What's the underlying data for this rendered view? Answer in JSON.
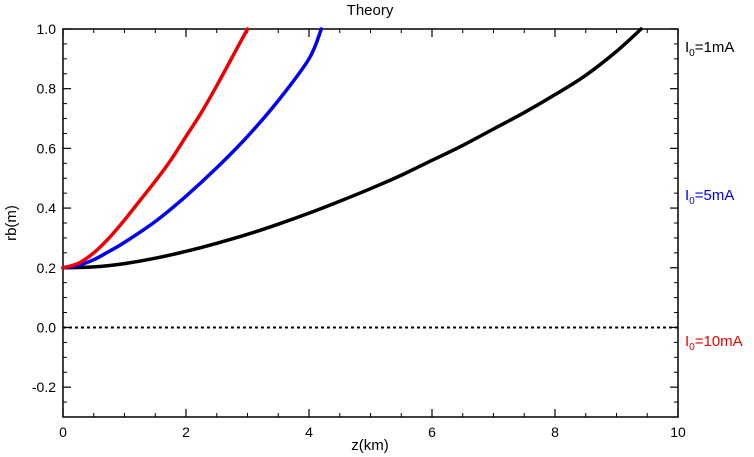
{
  "chart_data": {
    "type": "line",
    "title": "Theory",
    "xlabel": "z(km)",
    "ylabel": "rb(m)",
    "xlim": [
      0,
      10
    ],
    "ylim": [
      -0.3,
      1.0
    ],
    "xticks": [
      0,
      2,
      4,
      6,
      8,
      10
    ],
    "yticks": [
      -0.2,
      0.0,
      0.2,
      0.4,
      0.6,
      0.8,
      1.0
    ],
    "xtick_labels": [
      "0",
      "2",
      "4",
      "6",
      "8",
      "10"
    ],
    "ytick_labels": [
      "-0.2",
      "0.0",
      "0.2",
      "0.4",
      "0.6",
      "0.8",
      "1.0"
    ],
    "grid": false,
    "legend_position": "right outside plot",
    "series": [
      {
        "label_main": "I",
        "label_sub": "0",
        "label_tail": "=1mA",
        "color": "#000000",
        "x": [
          0,
          0.5,
          1,
          1.5,
          2,
          2.5,
          3,
          3.5,
          4,
          4.5,
          5,
          5.5,
          6,
          6.5,
          7,
          7.5,
          8,
          8.5,
          9,
          9.4
        ],
        "y": [
          0.2,
          0.203,
          0.214,
          0.232,
          0.255,
          0.282,
          0.312,
          0.346,
          0.383,
          0.423,
          0.465,
          0.51,
          0.56,
          0.61,
          0.665,
          0.72,
          0.78,
          0.845,
          0.925,
          1.0
        ]
      },
      {
        "label_main": "I",
        "label_sub": "0",
        "label_tail": "=5mA",
        "color": "#0000ee",
        "x": [
          0,
          0.25,
          0.5,
          0.75,
          1,
          1.5,
          2,
          2.5,
          3,
          3.5,
          4,
          4.2
        ],
        "y": [
          0.2,
          0.208,
          0.227,
          0.255,
          0.285,
          0.355,
          0.44,
          0.535,
          0.64,
          0.76,
          0.9,
          1.0
        ]
      },
      {
        "label_main": "I",
        "label_sub": "0",
        "label_tail": "=10mA",
        "color": "#ee0000",
        "x": [
          0,
          0.25,
          0.5,
          0.75,
          1,
          1.25,
          1.5,
          1.75,
          2,
          2.25,
          2.5,
          2.75,
          3.0
        ],
        "y": [
          0.2,
          0.215,
          0.25,
          0.3,
          0.36,
          0.425,
          0.49,
          0.56,
          0.64,
          0.72,
          0.81,
          0.905,
          1.0
        ]
      },
      {
        "label": "",
        "color": "#000000",
        "dashed": true,
        "x": [
          0,
          10
        ],
        "y": [
          0.0,
          0.0
        ]
      }
    ]
  }
}
